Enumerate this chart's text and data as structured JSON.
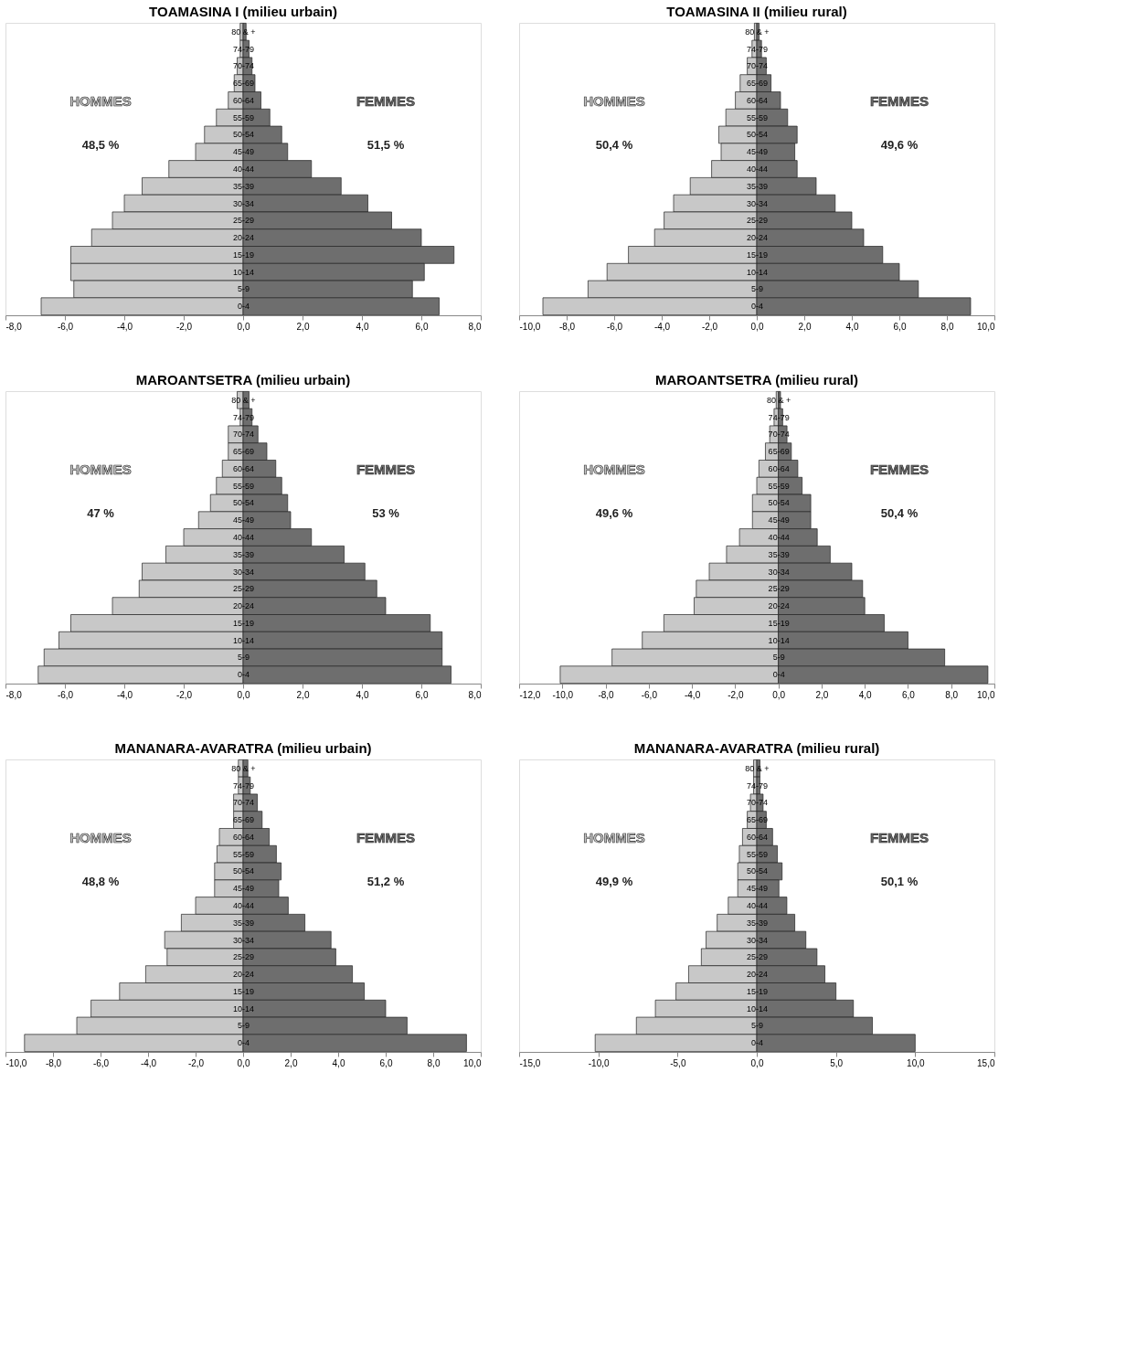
{
  "chart_data": [
    {
      "type": "bar",
      "orientation": "horizontal",
      "title": "TOAMASINA I (milieu urbain)",
      "stacked": true,
      "legend": false,
      "grid": false,
      "categories": [
        "80 & +",
        "74-79",
        "70-74",
        "65-69",
        "60-64",
        "55-59",
        "50-54",
        "45-49",
        "40-44",
        "35-39",
        "30-34",
        "25-29",
        "20-24",
        "15-19",
        "10-14",
        "5-9",
        "0-4"
      ],
      "series": [
        {
          "name": "HOMMES",
          "color": "#c8c8c8",
          "values": [
            -0.1,
            -0.1,
            -0.2,
            -0.3,
            -0.5,
            -0.9,
            -1.3,
            -1.6,
            -2.5,
            -3.4,
            -4.0,
            -4.4,
            -5.1,
            -5.8,
            -5.8,
            -5.7,
            -6.8
          ]
        },
        {
          "name": "FEMMES",
          "color": "#6e6e6e",
          "values": [
            0.1,
            0.2,
            0.3,
            0.4,
            0.6,
            0.9,
            1.3,
            1.5,
            2.3,
            3.3,
            4.2,
            5.0,
            6.0,
            7.1,
            6.1,
            5.7,
            6.6
          ]
        }
      ],
      "xlim": [
        -8,
        8
      ],
      "xticks": [
        {
          "value": -8,
          "label": "-8,0"
        },
        {
          "value": -6,
          "label": "-6,0"
        },
        {
          "value": -4,
          "label": "-4,0"
        },
        {
          "value": -2,
          "label": "-2,0"
        },
        {
          "value": 0,
          "label": "0,0"
        },
        {
          "value": 2,
          "label": "2,0"
        },
        {
          "value": 4,
          "label": "4,0"
        },
        {
          "value": 6,
          "label": "6,0"
        },
        {
          "value": 8,
          "label": "8,0"
        }
      ],
      "annotations": [
        "48,5 %",
        "51,5 %"
      ]
    },
    {
      "type": "bar",
      "orientation": "horizontal",
      "title": "TOAMASINA II (milieu rural)",
      "stacked": true,
      "legend": false,
      "grid": false,
      "categories": [
        "80 & +",
        "74-79",
        "70-74",
        "65-69",
        "60-64",
        "55-59",
        "50-54",
        "45-49",
        "40-44",
        "35-39",
        "30-34",
        "25-29",
        "20-24",
        "15-19",
        "10-14",
        "5-9",
        "0-4"
      ],
      "series": [
        {
          "name": "HOMMES",
          "color": "#c8c8c8",
          "values": [
            -0.1,
            -0.2,
            -0.4,
            -0.7,
            -0.9,
            -1.3,
            -1.6,
            -1.5,
            -1.9,
            -2.8,
            -3.5,
            -3.9,
            -4.3,
            -5.4,
            -6.3,
            -7.1,
            -9.0
          ]
        },
        {
          "name": "FEMMES",
          "color": "#6e6e6e",
          "values": [
            0.1,
            0.2,
            0.4,
            0.6,
            1.0,
            1.3,
            1.7,
            1.6,
            1.7,
            2.5,
            3.3,
            4.0,
            4.5,
            5.3,
            6.0,
            6.8,
            9.0
          ]
        }
      ],
      "xlim": [
        -10,
        10
      ],
      "xticks": [
        {
          "value": -10,
          "label": "-10,0"
        },
        {
          "value": -8,
          "label": "-8,0"
        },
        {
          "value": -6,
          "label": "-6,0"
        },
        {
          "value": -4,
          "label": "-4,0"
        },
        {
          "value": -2,
          "label": "-2,0"
        },
        {
          "value": 0,
          "label": "0,0"
        },
        {
          "value": 2,
          "label": "2,0"
        },
        {
          "value": 4,
          "label": "4,0"
        },
        {
          "value": 6,
          "label": "6,0"
        },
        {
          "value": 8,
          "label": "8,0"
        },
        {
          "value": 10,
          "label": "10,0"
        }
      ],
      "annotations": [
        "50,4 %",
        "49,6 %"
      ]
    },
    {
      "type": "bar",
      "orientation": "horizontal",
      "title": "MAROANTSETRA (milieu urbain)",
      "stacked": true,
      "legend": false,
      "grid": false,
      "categories": [
        "80 & +",
        "74-79",
        "70-74",
        "65-69",
        "60-64",
        "55-59",
        "50-54",
        "45-49",
        "40-44",
        "35-39",
        "30-34",
        "25-29",
        "20-24",
        "15-19",
        "10-14",
        "5-9",
        "0-4"
      ],
      "series": [
        {
          "name": "HOMMES",
          "color": "#c8c8c8",
          "values": [
            -0.2,
            -0.1,
            -0.5,
            -0.5,
            -0.7,
            -0.9,
            -1.1,
            -1.5,
            -2.0,
            -2.6,
            -3.4,
            -3.5,
            -4.4,
            -5.8,
            -6.2,
            -6.7,
            -6.9
          ]
        },
        {
          "name": "FEMMES",
          "color": "#6e6e6e",
          "values": [
            0.2,
            0.3,
            0.5,
            0.8,
            1.1,
            1.3,
            1.5,
            1.6,
            2.3,
            3.4,
            4.1,
            4.5,
            4.8,
            6.3,
            6.7,
            6.7,
            7.0
          ]
        }
      ],
      "xlim": [
        -8,
        8
      ],
      "xticks": [
        {
          "value": -8,
          "label": "-8,0"
        },
        {
          "value": -6,
          "label": "-6,0"
        },
        {
          "value": -4,
          "label": "-4,0"
        },
        {
          "value": -2,
          "label": "-2,0"
        },
        {
          "value": 0,
          "label": "0,0"
        },
        {
          "value": 2,
          "label": "2,0"
        },
        {
          "value": 4,
          "label": "4,0"
        },
        {
          "value": 6,
          "label": "6,0"
        },
        {
          "value": 8,
          "label": "8,0"
        }
      ],
      "annotations": [
        "47 %",
        "53 %"
      ]
    },
    {
      "type": "bar",
      "orientation": "horizontal",
      "title": "MAROANTSETRA (milieu rural)",
      "stacked": true,
      "legend": false,
      "grid": false,
      "categories": [
        "80 & +",
        "74-79",
        "70-74",
        "65-69",
        "60-64",
        "55-59",
        "50-54",
        "45-49",
        "40-44",
        "35-39",
        "30-34",
        "25-29",
        "20-24",
        "15-19",
        "10-14",
        "5-9",
        "0-4"
      ],
      "series": [
        {
          "name": "HOMMES",
          "color": "#c8c8c8",
          "values": [
            -0.1,
            -0.2,
            -0.4,
            -0.6,
            -0.9,
            -1.0,
            -1.2,
            -1.2,
            -1.8,
            -2.4,
            -3.2,
            -3.8,
            -3.9,
            -5.3,
            -6.3,
            -7.7,
            -10.1
          ]
        },
        {
          "name": "FEMMES",
          "color": "#6e6e6e",
          "values": [
            0.1,
            0.2,
            0.4,
            0.6,
            0.9,
            1.1,
            1.5,
            1.5,
            1.8,
            2.4,
            3.4,
            3.9,
            4.0,
            4.9,
            6.0,
            7.7,
            9.7
          ]
        }
      ],
      "xlim": [
        -12,
        10
      ],
      "xticks": [
        {
          "value": -12,
          "label": "-12,0"
        },
        {
          "value": -10,
          "label": "-10,0"
        },
        {
          "value": -8,
          "label": "-8,0"
        },
        {
          "value": -6,
          "label": "-6,0"
        },
        {
          "value": -4,
          "label": "-4,0"
        },
        {
          "value": -2,
          "label": "-2,0"
        },
        {
          "value": 0,
          "label": "0,0"
        },
        {
          "value": 2,
          "label": "2,0"
        },
        {
          "value": 4,
          "label": "4,0"
        },
        {
          "value": 6,
          "label": "6,0"
        },
        {
          "value": 8,
          "label": "8,0"
        },
        {
          "value": 10,
          "label": "10,0"
        }
      ],
      "annotations": [
        "49,6 %",
        "50,4 %"
      ]
    },
    {
      "type": "bar",
      "orientation": "horizontal",
      "title": "MANANARA-AVARATRA (milieu urbain)",
      "stacked": true,
      "legend": false,
      "grid": false,
      "categories": [
        "80 & +",
        "74-79",
        "70-74",
        "65-69",
        "60-64",
        "55-59",
        "50-54",
        "45-49",
        "40-44",
        "35-39",
        "30-34",
        "25-29",
        "20-24",
        "15-19",
        "10-14",
        "5-9",
        "0-4"
      ],
      "series": [
        {
          "name": "HOMMES",
          "color": "#c8c8c8",
          "values": [
            -0.2,
            -0.2,
            -0.4,
            -0.4,
            -1.0,
            -1.1,
            -1.2,
            -1.2,
            -2.0,
            -2.6,
            -3.3,
            -3.2,
            -4.1,
            -5.2,
            -6.4,
            -7.0,
            -9.2
          ]
        },
        {
          "name": "FEMMES",
          "color": "#6e6e6e",
          "values": [
            0.2,
            0.3,
            0.6,
            0.8,
            1.1,
            1.4,
            1.6,
            1.5,
            1.9,
            2.6,
            3.7,
            3.9,
            4.6,
            5.1,
            6.0,
            6.9,
            9.4
          ]
        }
      ],
      "xlim": [
        -10,
        10
      ],
      "xticks": [
        {
          "value": -10,
          "label": "-10,0"
        },
        {
          "value": -8,
          "label": "-8,0"
        },
        {
          "value": -6,
          "label": "-6,0"
        },
        {
          "value": -4,
          "label": "-4,0"
        },
        {
          "value": -2,
          "label": "-2,0"
        },
        {
          "value": 0,
          "label": "0,0"
        },
        {
          "value": 2,
          "label": "2,0"
        },
        {
          "value": 4,
          "label": "4,0"
        },
        {
          "value": 6,
          "label": "6,0"
        },
        {
          "value": 8,
          "label": "8,0"
        },
        {
          "value": 10,
          "label": "10,0"
        }
      ],
      "annotations": [
        "48,8 %",
        "51,2 %"
      ]
    },
    {
      "type": "bar",
      "orientation": "horizontal",
      "title": "MANANARA-AVARATRA (milieu rural)",
      "stacked": true,
      "legend": false,
      "grid": false,
      "categories": [
        "80 & +",
        "74-79",
        "70-74",
        "65-69",
        "60-64",
        "55-59",
        "50-54",
        "45-49",
        "40-44",
        "35-39",
        "30-34",
        "25-29",
        "20-24",
        "15-19",
        "10-14",
        "5-9",
        "0-4"
      ],
      "series": [
        {
          "name": "HOMMES",
          "color": "#c8c8c8",
          "values": [
            -0.2,
            -0.2,
            -0.4,
            -0.6,
            -0.9,
            -1.1,
            -1.2,
            -1.2,
            -1.8,
            -2.5,
            -3.2,
            -3.5,
            -4.3,
            -5.1,
            -6.4,
            -7.6,
            -10.2
          ]
        },
        {
          "name": "FEMMES",
          "color": "#6e6e6e",
          "values": [
            0.2,
            0.2,
            0.4,
            0.6,
            1.0,
            1.3,
            1.6,
            1.4,
            1.9,
            2.4,
            3.1,
            3.8,
            4.3,
            5.0,
            6.1,
            7.3,
            10.0
          ]
        }
      ],
      "xlim": [
        -15,
        15
      ],
      "xticks": [
        {
          "value": -15,
          "label": "-15,0"
        },
        {
          "value": -10,
          "label": "-10,0"
        },
        {
          "value": -5,
          "label": "-5,0"
        },
        {
          "value": 0,
          "label": "0,0"
        },
        {
          "value": 5,
          "label": "5,0"
        },
        {
          "value": 10,
          "label": "10,0"
        },
        {
          "value": 15,
          "label": "15,0"
        }
      ],
      "annotations": [
        "49,9 %",
        "50,1 %"
      ]
    }
  ]
}
